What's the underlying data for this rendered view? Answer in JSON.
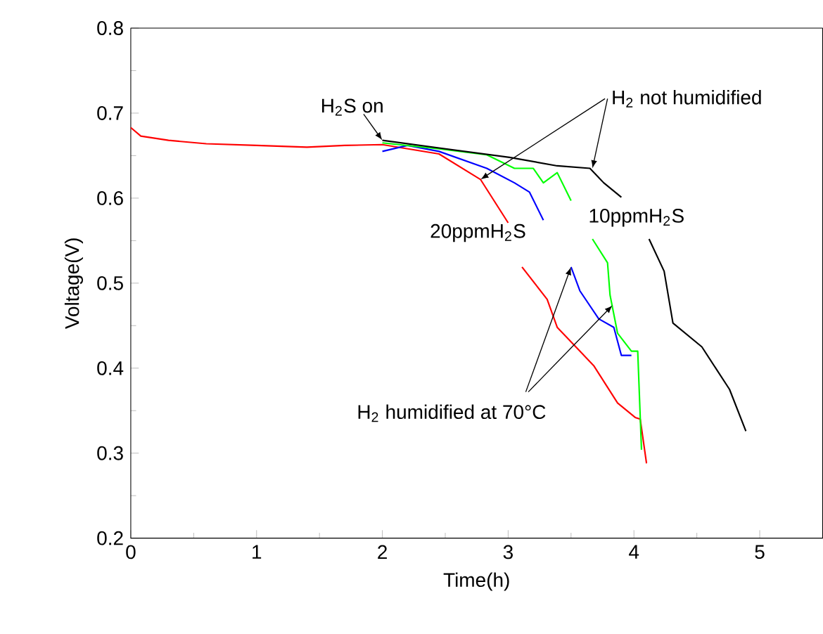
{
  "chart_data": {
    "type": "line",
    "xlabel": "Time(h)",
    "ylabel": "Voltage(V)",
    "xlim": [
      0,
      5.5
    ],
    "ylim": [
      0.2,
      0.8
    ],
    "xticks": [
      0,
      1,
      2,
      3,
      4,
      5
    ],
    "yticks": [
      0.2,
      0.3,
      0.4,
      0.5,
      0.6,
      0.7,
      0.8
    ],
    "series": [
      {
        "color": "#ff0000",
        "x": [
          0,
          0.08,
          0.3,
          0.6,
          1.0,
          1.4,
          1.7,
          2.0,
          2.45,
          2.78,
          3.0,
          null,
          3.11,
          3.31,
          3.39,
          3.57,
          3.68,
          3.87,
          4.01,
          4.05,
          4.1
        ],
        "values": [
          0.683,
          0.673,
          0.668,
          0.664,
          0.662,
          0.66,
          0.662,
          0.663,
          0.652,
          0.622,
          0.571,
          null,
          0.519,
          0.481,
          0.448,
          0.42,
          0.403,
          0.359,
          0.342,
          0.34,
          0.288
        ]
      },
      {
        "color": "#0000ff",
        "x": [
          2.0,
          2.2,
          2.45,
          2.83,
          3.05,
          3.17,
          3.28,
          null,
          3.5,
          3.57,
          3.72,
          3.84,
          3.9,
          3.98
        ],
        "values": [
          0.655,
          0.662,
          0.655,
          0.635,
          0.618,
          0.607,
          0.574,
          null,
          0.519,
          0.491,
          0.458,
          0.448,
          0.415,
          0.415
        ]
      },
      {
        "color": "#00ff00",
        "x": [
          2.0,
          2.45,
          2.83,
          3.05,
          3.2,
          3.28,
          3.39,
          3.5,
          null,
          3.67,
          3.79,
          3.81,
          3.87,
          3.98,
          4.03,
          4.06
        ],
        "values": [
          0.665,
          0.658,
          0.651,
          0.635,
          0.635,
          0.618,
          0.63,
          0.597,
          null,
          0.552,
          0.524,
          0.486,
          0.441,
          0.42,
          0.42,
          0.304
        ]
      },
      {
        "color": "#000000",
        "x": [
          2.0,
          2.45,
          3.01,
          3.39,
          3.65,
          3.76,
          3.9,
          null,
          4.12,
          4.24,
          4.31,
          4.54,
          4.76,
          4.89
        ],
        "values": [
          0.668,
          0.659,
          0.648,
          0.638,
          0.635,
          0.618,
          0.601,
          null,
          0.552,
          0.514,
          0.453,
          0.425,
          0.375,
          0.326
        ]
      }
    ],
    "annotations": [
      {
        "text": "H$_{2}$S on",
        "x": 2.0,
        "y": 0.668
      },
      {
        "text": "H$_{2}$ not humidified",
        "x": 3.67,
        "y": 0.635
      },
      "10ppmH$_{2}$S",
      "20ppmH$_{2}$S",
      {
        "text": "H$_{2}$ humidified at 70°C",
        "x": 3.5,
        "y": 0.519
      }
    ]
  }
}
